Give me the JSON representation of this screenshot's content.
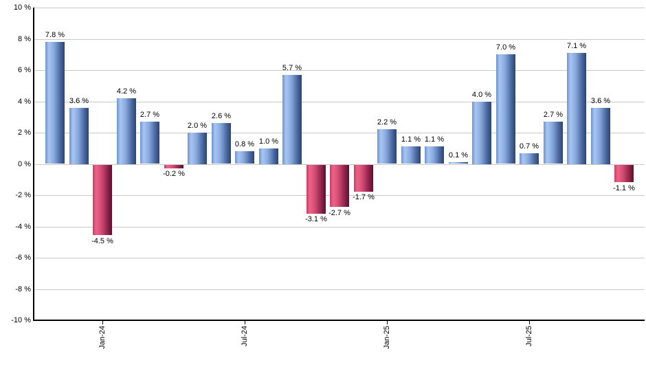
{
  "chart_data": {
    "type": "bar",
    "title": "",
    "xlabel": "",
    "ylabel": "",
    "values": [
      7.8,
      3.6,
      -4.5,
      4.2,
      2.7,
      -0.2,
      2.0,
      2.6,
      0.8,
      1.0,
      5.7,
      -3.1,
      -2.7,
      -1.7,
      2.2,
      1.1,
      1.1,
      0.1,
      4.0,
      7.0,
      0.7,
      2.7,
      7.1,
      3.6,
      -1.1
    ],
    "bar_value_labels": [
      "7.8 %",
      "3.6 %",
      "-4.5 %",
      "4.2 %",
      "2.7 %",
      "-0.2 %",
      "2.0 %",
      "2.6 %",
      "0.8 %",
      "1.0 %",
      "5.7 %",
      "-3.1 %",
      "-2.7 %",
      "-1.7 %",
      "2.2 %",
      "1.1 %",
      "1.1 %",
      "0.1 %",
      "4.0 %",
      "7.0 %",
      "0.7 %",
      "2.7 %",
      "7.1 %",
      "3.6 %",
      "-1.1 %"
    ],
    "x_ticks": [
      {
        "index": 2,
        "label": "Jan-24"
      },
      {
        "index": 8,
        "label": "Jul-24"
      },
      {
        "index": 14,
        "label": "Jan-25"
      },
      {
        "index": 20,
        "label": "Jul-25"
      }
    ],
    "y_axis": {
      "min": -10,
      "max": 10,
      "step": 2,
      "label_suffix": " %"
    },
    "y_tick_labels": [
      "10 %",
      "8 %",
      "6 %",
      "4 %",
      "2 %",
      "0 %",
      "-2 %",
      "-4 %",
      "-6 %",
      "-8 %",
      "-10 %"
    ],
    "grid": true,
    "legend_position": "none",
    "colors": {
      "positive_bar": "#7ba0da",
      "positive_gradient": [
        "#6c92cf",
        "#a9c6f2",
        "#88a9de",
        "#4a68a0",
        "#2b4470"
      ],
      "negative_bar": "#d14a72",
      "negative_gradient": [
        "#c93d64",
        "#ef6289",
        "#d14b73",
        "#8d2248",
        "#5c102f"
      ],
      "gridline": "#c9c9c9",
      "axis": "#000000",
      "text": "#000000"
    }
  }
}
